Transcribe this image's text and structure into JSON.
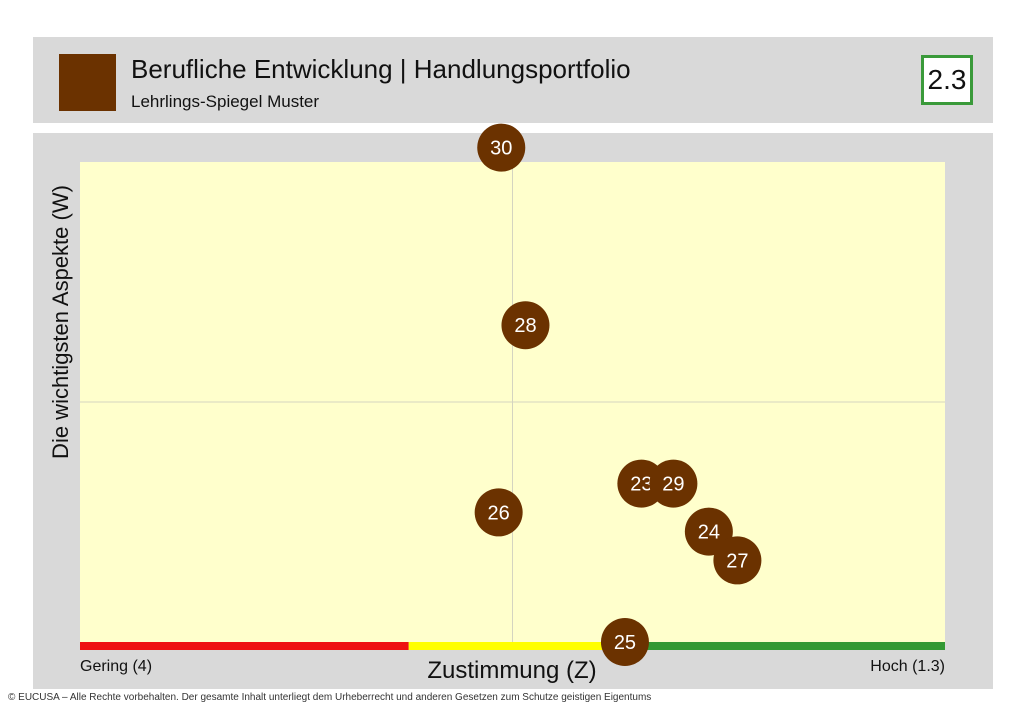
{
  "header": {
    "title": "Berufliche Entwicklung  | Handlungsportfolio",
    "subtitle": "Lehrlings-Spiegel Muster",
    "badge": "2.3",
    "accent_color": "#6b3200",
    "badge_border_color": "#3a9a3a"
  },
  "footer": {
    "copyright": "© EUCUSA – Alle Rechte vorbehalten. Der gesamte Inhalt unterliegt dem Urheberrecht und anderen Gesetzen zum Schutze geistigen Eigentums"
  },
  "chart_data": {
    "type": "scatter",
    "xlabel": "Zustimmung (Z)",
    "ylabel": "Die wichtigsten Aspekte (W)",
    "x_low_label": "Gering (4)",
    "x_high_label": "Hoch (1.3)",
    "xlim": [
      0,
      1
    ],
    "ylim": [
      0,
      1
    ],
    "quadrant_split": {
      "x": 0.5,
      "y": 0.5
    },
    "grid": false,
    "plot_background": "#ffffcc",
    "point_color": "#6b3200",
    "scale_bar": [
      {
        "color": "#ee1111",
        "from": 0.0,
        "to": 0.38
      },
      {
        "color": "#ffff00",
        "from": 0.38,
        "to": 0.64
      },
      {
        "color": "#339933",
        "from": 0.64,
        "to": 1.0
      }
    ],
    "points": [
      {
        "label": "30",
        "x": 0.487,
        "y": 1.03
      },
      {
        "label": "28",
        "x": 0.515,
        "y": 0.66
      },
      {
        "label": "23",
        "x": 0.649,
        "y": 0.33
      },
      {
        "label": "29",
        "x": 0.686,
        "y": 0.33
      },
      {
        "label": "26",
        "x": 0.484,
        "y": 0.27
      },
      {
        "label": "24",
        "x": 0.727,
        "y": 0.23
      },
      {
        "label": "27",
        "x": 0.76,
        "y": 0.17
      },
      {
        "label": "25",
        "x": 0.63,
        "y": 0.0
      }
    ]
  }
}
